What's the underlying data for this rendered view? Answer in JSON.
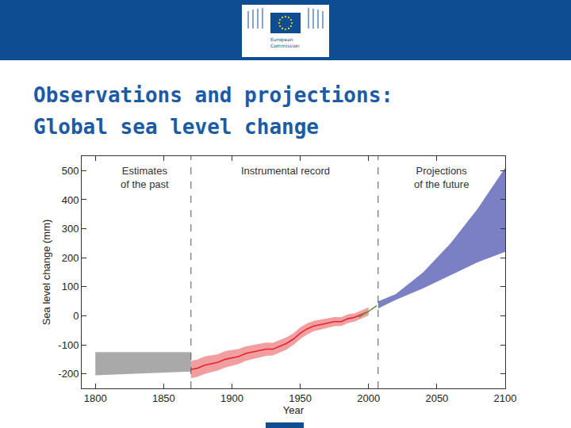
{
  "slide": {
    "title_lines": [
      "Observations and projections:",
      "Global sea level change"
    ],
    "logo_text": [
      "European",
      "Commission"
    ]
  },
  "chart_data": {
    "type": "line",
    "xlabel": "Year",
    "ylabel": "Sea level change (mm)",
    "xlim": [
      1790,
      2100
    ],
    "ylim": [
      -250,
      550
    ],
    "xticks": [
      1800,
      1850,
      1900,
      1950,
      2000,
      2050,
      2100
    ],
    "yticks": [
      -200,
      -100,
      0,
      100,
      200,
      300,
      400,
      500
    ],
    "grid": false,
    "dividers": [
      1870,
      2007
    ],
    "annotations": [
      {
        "text": [
          "Estimates",
          "of the past"
        ],
        "x": 1836,
        "y": 525
      },
      {
        "text": [
          "Instrumental record"
        ],
        "x": 1939,
        "y": 525
      },
      {
        "text": [
          "Projections",
          "of the future"
        ],
        "x": 2053,
        "y": 525
      }
    ],
    "series": [
      {
        "type": "area",
        "color": "#a9a9a9",
        "x": [
          1800,
          1870
        ],
        "lower": [
          -205,
          -192
        ],
        "upper": [
          -125,
          -125
        ]
      },
      {
        "type": "line",
        "color": "#e3262b",
        "x": [
          1870,
          1875,
          1880,
          1885,
          1890,
          1895,
          1900,
          1905,
          1910,
          1915,
          1920,
          1925,
          1930,
          1935,
          1940,
          1945,
          1950,
          1955,
          1960,
          1965,
          1970,
          1975,
          1980,
          1985,
          1990,
          1995,
          2000
        ],
        "values": [
          -185,
          -180,
          -170,
          -165,
          -160,
          -150,
          -145,
          -140,
          -130,
          -125,
          -120,
          -115,
          -115,
          -105,
          -95,
          -80,
          -60,
          -45,
          -35,
          -30,
          -25,
          -20,
          -20,
          -10,
          -5,
          5,
          15
        ],
        "lower": [
          -215,
          -210,
          -200,
          -193,
          -188,
          -178,
          -172,
          -166,
          -155,
          -150,
          -144,
          -138,
          -137,
          -127,
          -116,
          -100,
          -80,
          -64,
          -53,
          -47,
          -42,
          -36,
          -35,
          -25,
          -19,
          -9,
          1
        ],
        "upper": [
          -155,
          -150,
          -140,
          -137,
          -132,
          -122,
          -118,
          -114,
          -105,
          -100,
          -96,
          -92,
          -93,
          -83,
          -74,
          -60,
          -40,
          -26,
          -17,
          -13,
          -8,
          -4,
          -5,
          5,
          9,
          19,
          29
        ]
      },
      {
        "type": "line",
        "color": "#5b9a3c",
        "x": [
          1993,
          1996,
          2000,
          2003,
          2006
        ],
        "values": [
          -5,
          5,
          15,
          25,
          35
        ]
      },
      {
        "type": "area",
        "color": "#7b7fc4",
        "x": [
          2007,
          2020,
          2040,
          2060,
          2080,
          2100
        ],
        "lower": [
          25,
          55,
          95,
          140,
          185,
          220
        ],
        "upper": [
          50,
          75,
          150,
          250,
          370,
          510
        ]
      }
    ]
  }
}
